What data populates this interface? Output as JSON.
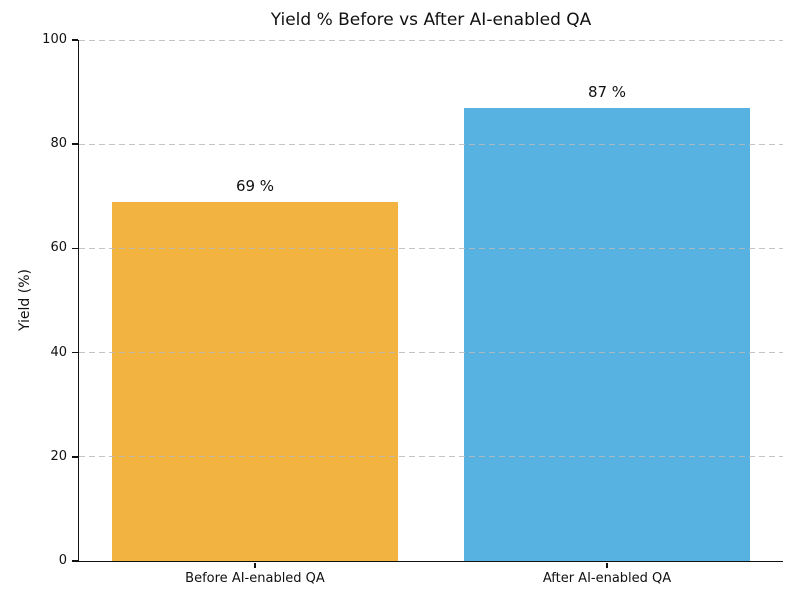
{
  "chart_data": {
    "type": "bar",
    "title": "Yield % Before vs After AI-enabled QA",
    "xlabel": "",
    "ylabel": "Yield (%)",
    "categories": [
      "Before AI-enabled QA",
      "After AI-enabled QA"
    ],
    "values": [
      69,
      87
    ],
    "bar_labels": [
      "69 %",
      "87 %"
    ],
    "bar_colors": [
      "#F2B340",
      "#57B2E2"
    ],
    "ylim": [
      0,
      100
    ],
    "yticks": [
      0,
      20,
      40,
      60,
      80,
      100
    ],
    "ytick_labels": [
      "0",
      "20",
      "40",
      "60",
      "80",
      "100"
    ],
    "bar_width_fraction": 0.81,
    "grid": "horizontal-dashed",
    "grid_color": "#c9c9c9",
    "axis_color": "#111111",
    "background_color": "#ffffff",
    "legend": "none"
  }
}
